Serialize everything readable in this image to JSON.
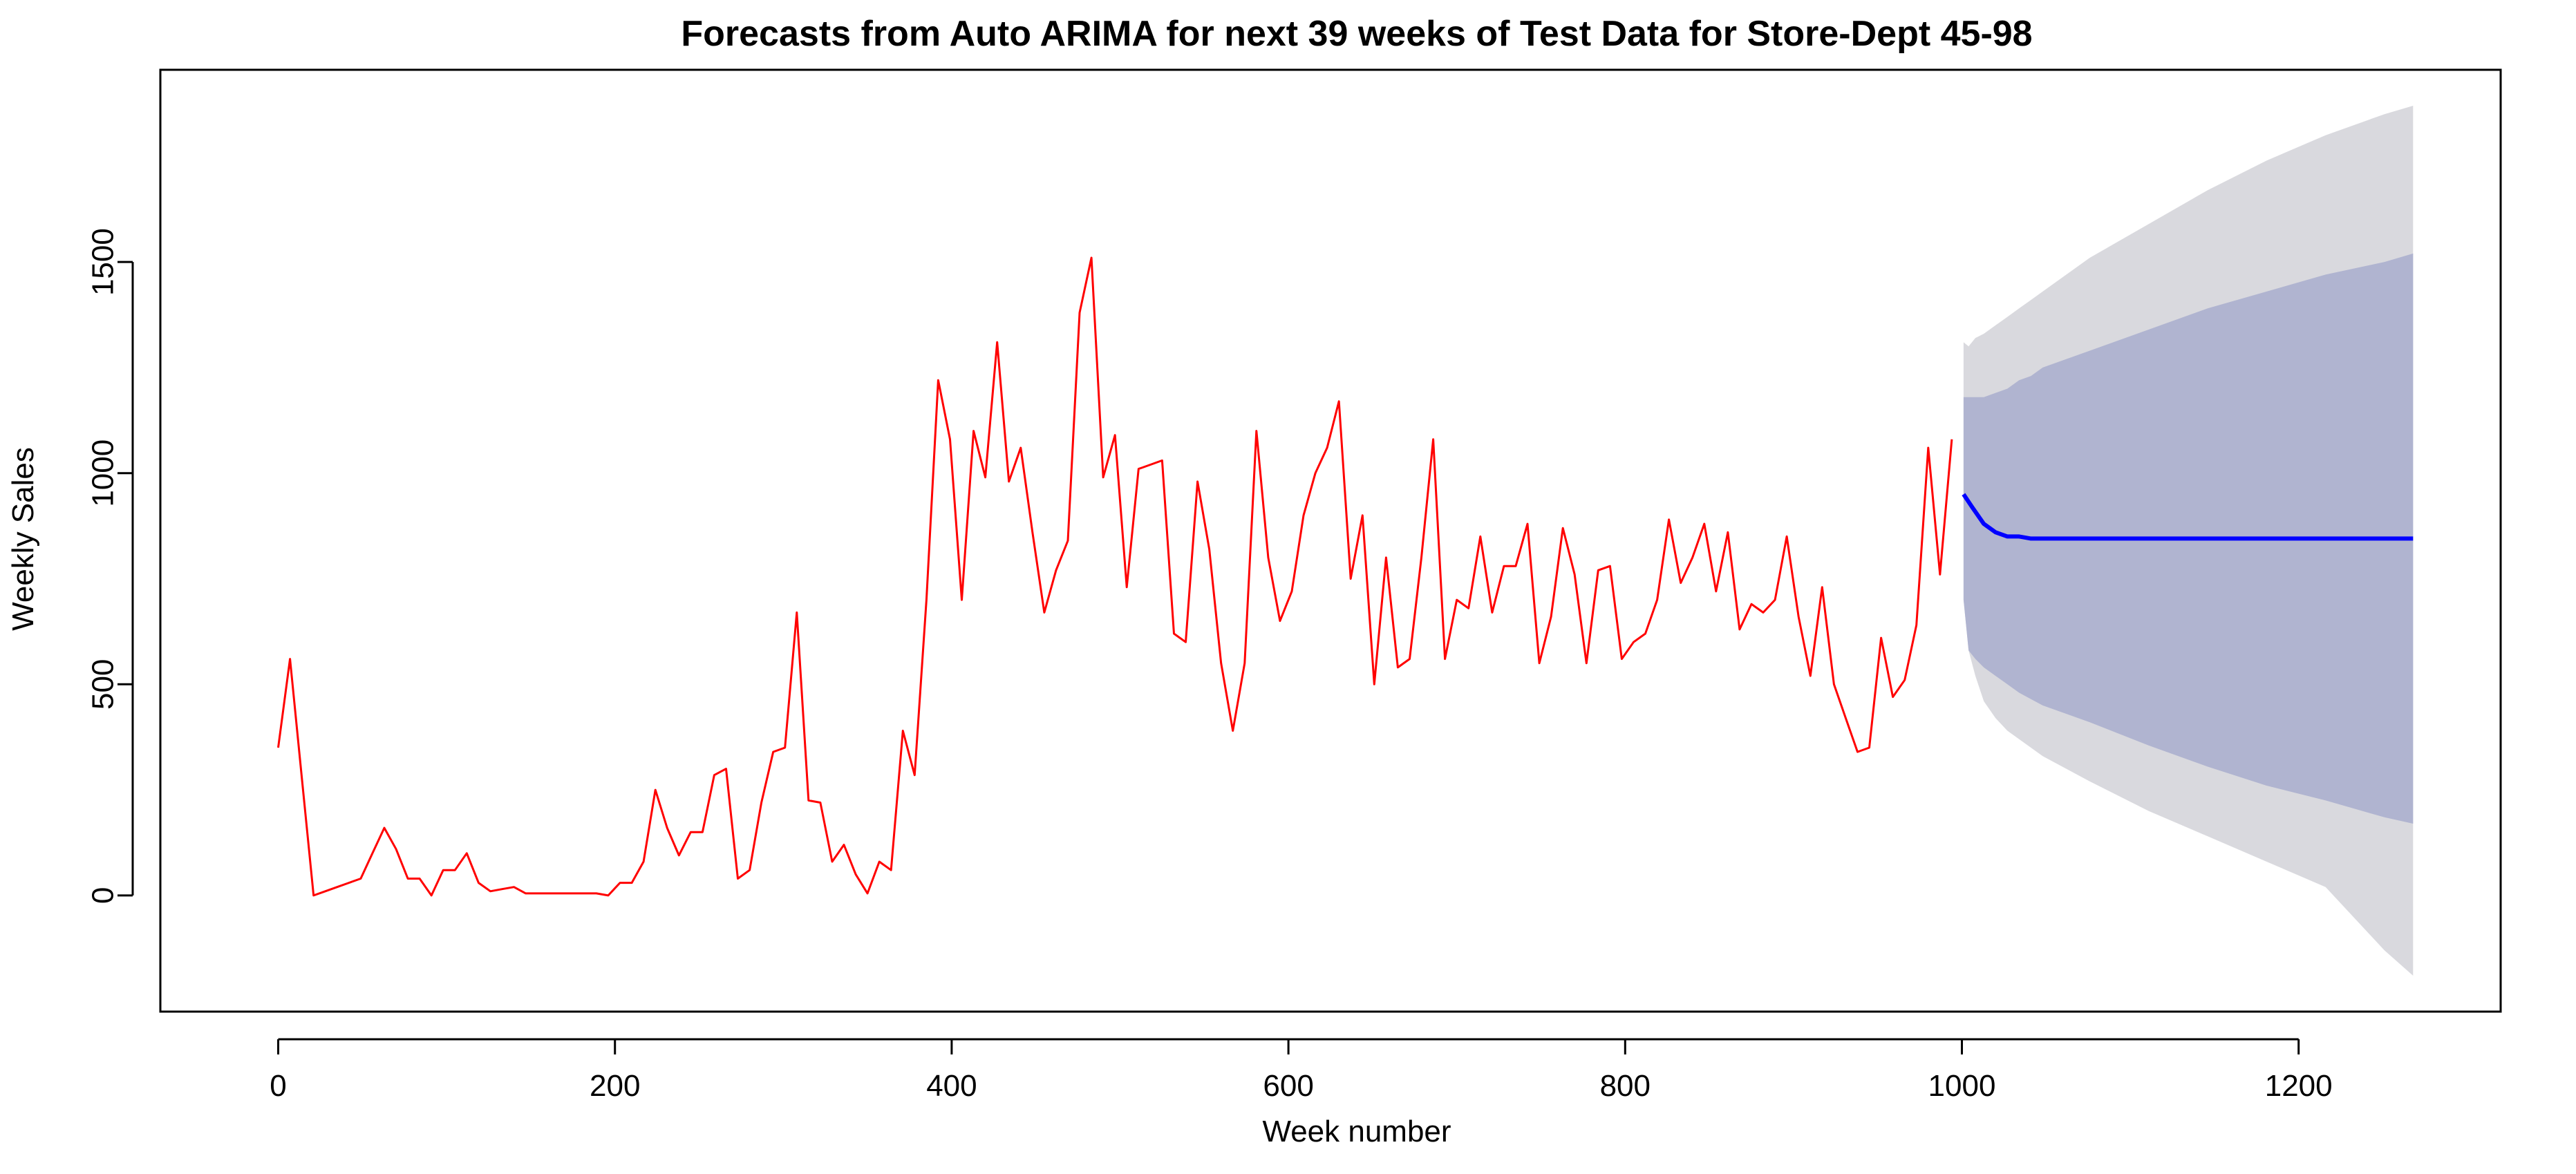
{
  "chart_data": {
    "type": "line",
    "title": "Forecasts from Auto ARIMA for next 39 weeks of Test Data for Store-Dept 45-98",
    "xlabel": "Week number",
    "ylabel": "Weekly Sales",
    "xlim": [
      -70,
      1320
    ],
    "ylim": [
      -275,
      1955
    ],
    "x_ticks": [
      0,
      200,
      400,
      600,
      800,
      1000,
      1200
    ],
    "y_ticks": [
      0,
      500,
      1000,
      1500
    ],
    "grid": false,
    "legend": "none",
    "colors": {
      "observed": "#ff0000",
      "forecast": "#0000ff",
      "band80": "#b0b4d0",
      "band95": "#d9d9de"
    },
    "series": [
      {
        "type": "line",
        "x": [
          0,
          7,
          14,
          21,
          28,
          35,
          42,
          49,
          56,
          63,
          70,
          77,
          84,
          91,
          98,
          105,
          112,
          119,
          126,
          133,
          140,
          147,
          154,
          161,
          168,
          175,
          182,
          189,
          196,
          203,
          210,
          217,
          224,
          231,
          238,
          245,
          252,
          259,
          266,
          273,
          280,
          287,
          294,
          301,
          308,
          315,
          322,
          329,
          336,
          343,
          350,
          357,
          364,
          371,
          378,
          385,
          392,
          399,
          406,
          413,
          420,
          427,
          434,
          441,
          448,
          455,
          462,
          469,
          476,
          483,
          490,
          497,
          504,
          511,
          518,
          525,
          532,
          539,
          546,
          553,
          560,
          567,
          574,
          581,
          588,
          595,
          602,
          609,
          616,
          623,
          630,
          637,
          644,
          651,
          658,
          665,
          672,
          679,
          686,
          693,
          700,
          707,
          714,
          721,
          728,
          735,
          742,
          749,
          756,
          763,
          770,
          777,
          784,
          791,
          798,
          805,
          812,
          819,
          826,
          833,
          840,
          847,
          854,
          861,
          868,
          875,
          882,
          889,
          896,
          903,
          910,
          917,
          924,
          931,
          938,
          945,
          952,
          959,
          966,
          973,
          980,
          987,
          994
        ],
        "values": [
          350,
          560,
          280,
          0,
          10,
          20,
          30,
          40,
          100,
          160,
          110,
          40,
          40,
          0,
          60,
          60,
          100,
          30,
          10,
          15,
          20,
          5,
          5,
          5,
          5,
          5,
          5,
          5,
          0,
          30,
          30,
          80,
          250,
          160,
          95,
          150,
          150,
          285,
          300,
          40,
          60,
          220,
          340,
          350,
          670,
          225,
          220,
          80,
          120,
          50,
          5,
          80,
          60,
          390,
          285,
          700,
          1220,
          1080,
          700,
          1100,
          990,
          1310,
          980,
          1060,
          860,
          670,
          770,
          840,
          1380,
          1510,
          990,
          1090,
          730,
          1010,
          1020,
          1030,
          620,
          600,
          980,
          820,
          550,
          390,
          550,
          1100,
          800,
          650,
          720,
          900,
          1000,
          1060,
          1170,
          750,
          900,
          500,
          800,
          540,
          560,
          800,
          1080,
          560,
          700,
          680,
          850,
          670,
          780,
          780,
          880,
          550,
          660,
          870,
          760,
          550,
          770,
          780,
          560,
          600,
          620,
          700,
          890,
          740,
          800,
          880,
          720,
          860,
          630,
          690,
          670,
          700,
          850,
          660,
          520,
          730,
          500,
          420,
          340,
          350,
          610,
          470,
          510,
          640,
          1060,
          760,
          1080
        ]
      },
      {
        "type": "line",
        "x": [
          1001,
          1006,
          1013,
          1020,
          1027,
          1034,
          1041,
          1076,
          1111,
          1146,
          1181,
          1216,
          1251,
          1268
        ],
        "values": [
          950,
          920,
          880,
          860,
          850,
          850,
          845,
          845,
          845,
          845,
          845,
          845,
          845,
          845
        ]
      },
      {
        "type": "area",
        "x": [
          1001,
          1004,
          1008,
          1013,
          1020,
          1027,
          1034,
          1041,
          1048,
          1076,
          1111,
          1146,
          1181,
          1216,
          1251,
          1268
        ],
        "lower": [
          700,
          580,
          520,
          460,
          420,
          390,
          370,
          350,
          330,
          270,
          200,
          140,
          80,
          20,
          -130,
          -190
        ],
        "upper": [
          1310,
          1300,
          1320,
          1330,
          1350,
          1370,
          1390,
          1410,
          1430,
          1510,
          1590,
          1670,
          1740,
          1800,
          1850,
          1870
        ]
      },
      {
        "type": "area",
        "x": [
          1001,
          1004,
          1008,
          1013,
          1020,
          1027,
          1034,
          1041,
          1048,
          1076,
          1111,
          1146,
          1181,
          1216,
          1251,
          1268
        ],
        "lower": [
          700,
          580,
          560,
          540,
          520,
          500,
          480,
          465,
          450,
          410,
          355,
          305,
          260,
          225,
          185,
          170
        ],
        "upper": [
          1180,
          1180,
          1180,
          1180,
          1190,
          1200,
          1220,
          1230,
          1250,
          1290,
          1340,
          1390,
          1430,
          1470,
          1500,
          1520
        ]
      }
    ]
  }
}
